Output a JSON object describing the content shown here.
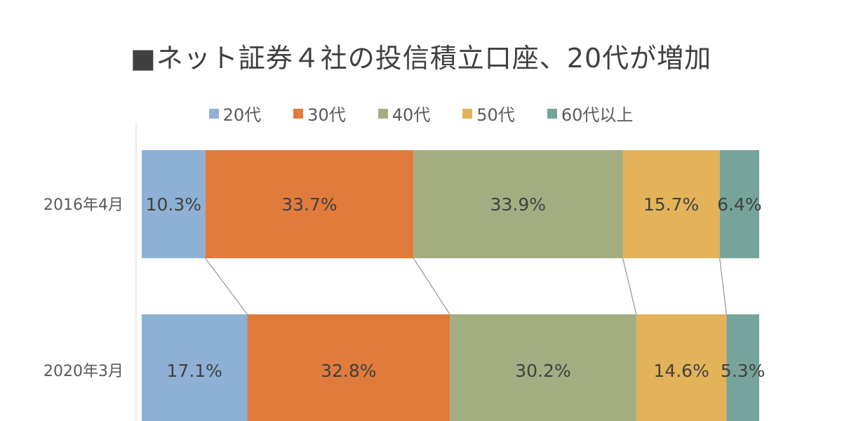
{
  "chart_data": {
    "type": "bar",
    "orientation": "horizontal",
    "stacked": "percent",
    "title": "■ネット証券４社の投信積立口座、20代が増加",
    "categories": [
      "2016年4月",
      "2020年3月"
    ],
    "series": [
      {
        "name": "20代",
        "values": [
          10.3,
          17.1
        ],
        "labels": [
          "10.3%",
          "17.1%"
        ],
        "color": "#8eb0d5"
      },
      {
        "name": "30代",
        "values": [
          33.7,
          32.8
        ],
        "labels": [
          "33.7%",
          "32.8%"
        ],
        "color": "#e07b3c"
      },
      {
        "name": "40代",
        "values": [
          33.9,
          30.2
        ],
        "labels": [
          "33.9%",
          "30.2%"
        ],
        "color": "#a3ad82"
      },
      {
        "name": "50代",
        "values": [
          15.7,
          14.6
        ],
        "labels": [
          "15.7%",
          "14.6%"
        ],
        "color": "#e3b35a"
      },
      {
        "name": "60代以上",
        "values": [
          6.4,
          5.3
        ],
        "labels": [
          "6.4%",
          "5.3%"
        ],
        "color": "#76a49a"
      }
    ],
    "legend_position": "top",
    "series_lines": true,
    "grid": false
  }
}
